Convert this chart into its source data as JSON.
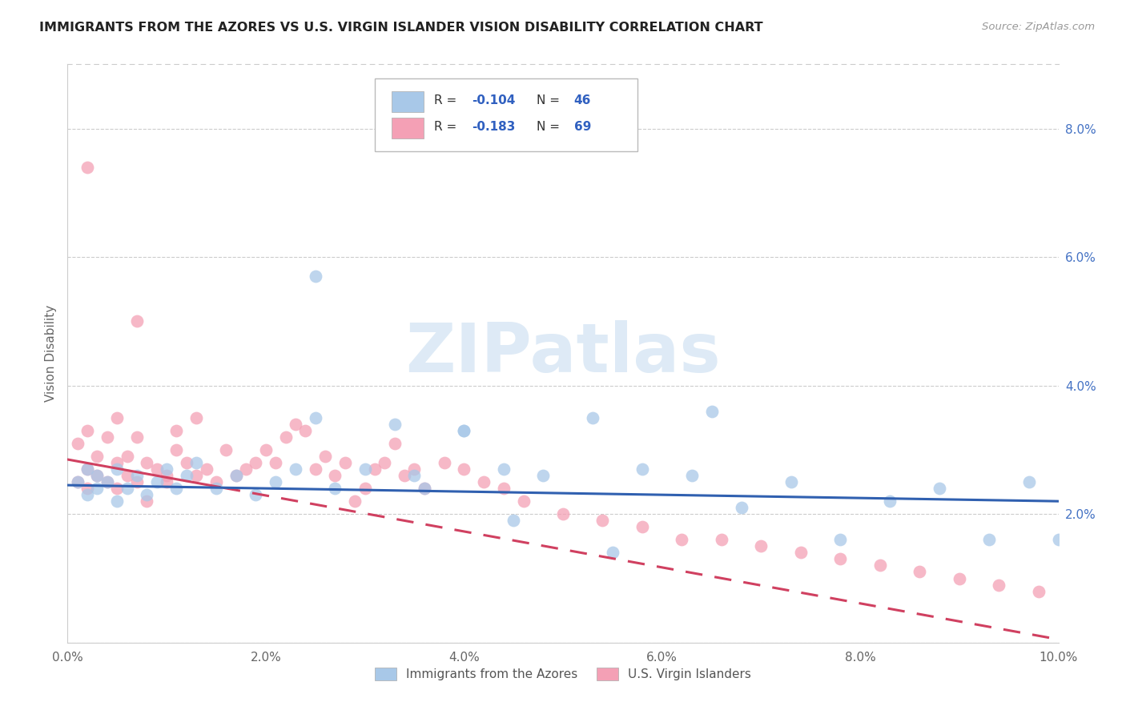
{
  "title": "IMMIGRANTS FROM THE AZORES VS U.S. VIRGIN ISLANDER VISION DISABILITY CORRELATION CHART",
  "source": "Source: ZipAtlas.com",
  "ylabel": "Vision Disability",
  "xlim": [
    0.0,
    0.1
  ],
  "ylim": [
    0.0,
    0.09
  ],
  "xticks": [
    0.0,
    0.02,
    0.04,
    0.06,
    0.08,
    0.1
  ],
  "yticks": [
    0.0,
    0.02,
    0.04,
    0.06,
    0.08
  ],
  "xticklabels": [
    "0.0%",
    "2.0%",
    "4.0%",
    "6.0%",
    "8.0%",
    "10.0%"
  ],
  "yticklabels_right": [
    "",
    "2.0%",
    "4.0%",
    "6.0%",
    "8.0%"
  ],
  "color_blue": "#a8c8e8",
  "color_pink": "#f4a0b5",
  "trendline_blue": "#3060b0",
  "trendline_pink": "#d04060",
  "watermark_text": "ZIPatlas",
  "watermark_color": "#c8ddf0",
  "legend_r1": "-0.104",
  "legend_n1": "46",
  "legend_r2": "-0.183",
  "legend_n2": "69",
  "blue_intercept": 0.0245,
  "blue_slope": -0.025,
  "pink_intercept": 0.0285,
  "pink_slope": -0.28,
  "blue_x": [
    0.001,
    0.002,
    0.002,
    0.003,
    0.003,
    0.004,
    0.005,
    0.005,
    0.006,
    0.007,
    0.008,
    0.009,
    0.01,
    0.011,
    0.012,
    0.013,
    0.015,
    0.017,
    0.019,
    0.021,
    0.023,
    0.025,
    0.027,
    0.03,
    0.033,
    0.036,
    0.04,
    0.044,
    0.048,
    0.053,
    0.058,
    0.063,
    0.068,
    0.073,
    0.078,
    0.083,
    0.088,
    0.093,
    0.097,
    0.1,
    0.025,
    0.035,
    0.04,
    0.045,
    0.055,
    0.065
  ],
  "blue_y": [
    0.025,
    0.023,
    0.027,
    0.024,
    0.026,
    0.025,
    0.022,
    0.027,
    0.024,
    0.026,
    0.023,
    0.025,
    0.027,
    0.024,
    0.026,
    0.028,
    0.024,
    0.026,
    0.023,
    0.025,
    0.027,
    0.035,
    0.024,
    0.027,
    0.034,
    0.024,
    0.033,
    0.027,
    0.026,
    0.035,
    0.027,
    0.026,
    0.021,
    0.025,
    0.016,
    0.022,
    0.024,
    0.016,
    0.025,
    0.016,
    0.057,
    0.026,
    0.033,
    0.019,
    0.014,
    0.036
  ],
  "pink_x": [
    0.001,
    0.001,
    0.002,
    0.002,
    0.002,
    0.003,
    0.003,
    0.004,
    0.004,
    0.005,
    0.005,
    0.005,
    0.006,
    0.006,
    0.007,
    0.007,
    0.008,
    0.008,
    0.009,
    0.01,
    0.01,
    0.011,
    0.011,
    0.012,
    0.013,
    0.013,
    0.014,
    0.015,
    0.016,
    0.017,
    0.018,
    0.019,
    0.02,
    0.021,
    0.022,
    0.023,
    0.024,
    0.025,
    0.026,
    0.027,
    0.028,
    0.029,
    0.03,
    0.031,
    0.032,
    0.033,
    0.034,
    0.035,
    0.036,
    0.038,
    0.04,
    0.042,
    0.044,
    0.046,
    0.05,
    0.054,
    0.058,
    0.062,
    0.066,
    0.07,
    0.074,
    0.078,
    0.082,
    0.086,
    0.09,
    0.094,
    0.098,
    0.002,
    0.007
  ],
  "pink_y": [
    0.025,
    0.031,
    0.024,
    0.027,
    0.033,
    0.026,
    0.029,
    0.025,
    0.032,
    0.024,
    0.028,
    0.035,
    0.026,
    0.029,
    0.025,
    0.032,
    0.028,
    0.022,
    0.027,
    0.026,
    0.025,
    0.03,
    0.033,
    0.028,
    0.026,
    0.035,
    0.027,
    0.025,
    0.03,
    0.026,
    0.027,
    0.028,
    0.03,
    0.028,
    0.032,
    0.034,
    0.033,
    0.027,
    0.029,
    0.026,
    0.028,
    0.022,
    0.024,
    0.027,
    0.028,
    0.031,
    0.026,
    0.027,
    0.024,
    0.028,
    0.027,
    0.025,
    0.024,
    0.022,
    0.02,
    0.019,
    0.018,
    0.016,
    0.016,
    0.015,
    0.014,
    0.013,
    0.012,
    0.011,
    0.01,
    0.009,
    0.008,
    0.074,
    0.05
  ]
}
